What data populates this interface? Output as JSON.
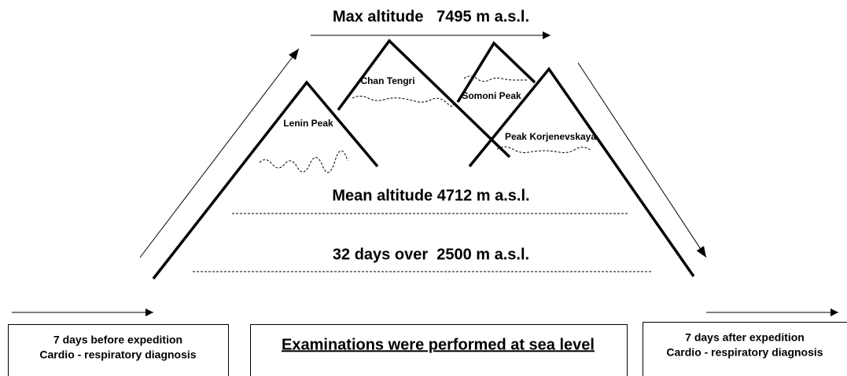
{
  "top": {
    "label": "Max altitude   7495 m a.s.l."
  },
  "peaks": [
    {
      "label": "Lenin Peak"
    },
    {
      "label": "Chan Tengri"
    },
    {
      "label": "Somoni Peak"
    },
    {
      "label": "Peak Korjenevskaya"
    }
  ],
  "levels": [
    {
      "label": "Mean altitude 4712 m a.s.l."
    },
    {
      "label": "32 days over  2500 m a.s.l."
    }
  ],
  "boxes": [
    {
      "lines": [
        "7 days before expedition",
        "Cardio - respiratory diagnosis"
      ]
    },
    {
      "lines": [
        "Examinations were performed at sea level"
      ]
    },
    {
      "lines": [
        "7 days after expedition",
        "Cardio - respiratory diagnosis"
      ]
    }
  ]
}
